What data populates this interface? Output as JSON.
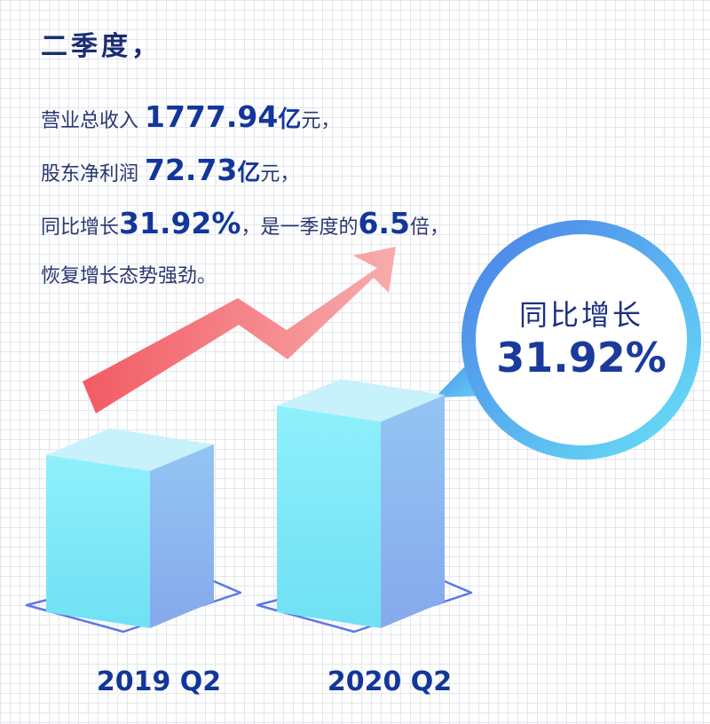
{
  "text": {
    "heading": "二季度，",
    "revenue_prefix": "营业总收入 ",
    "revenue_value": "1777.94",
    "revenue_unit_bold": "亿",
    "revenue_suffix": "元，",
    "profit_prefix": "股东净利润 ",
    "profit_value": "72.73",
    "profit_unit_bold": "亿",
    "profit_suffix": "元，",
    "growth_prefix": "同比增长",
    "growth_value": "31.92%",
    "growth_mid": "，是一季度的",
    "multiple_value": "6.5",
    "multiple_suffix": "倍，",
    "closing": "恢复增长态势强劲。"
  },
  "bubble": {
    "label": "同比增长",
    "value": "31.92%"
  },
  "colors": {
    "arrow": "#f5676b",
    "bar_front": "#7fe8f6",
    "bar_top": "#c7f1fb",
    "bar_side": "#8fb3f0",
    "bubble_ring": "#5fc0f5",
    "label": "#12369a"
  },
  "chart_data": {
    "type": "bar",
    "categories": [
      "2019 Q2",
      "2020 Q2"
    ],
    "values": [
      55.38,
      72.73
    ],
    "title": "",
    "xlabel": "",
    "ylabel": "",
    "ylim": [
      0,
      80
    ],
    "annotations": [
      {
        "text": "同比增长 31.92%"
      }
    ]
  }
}
